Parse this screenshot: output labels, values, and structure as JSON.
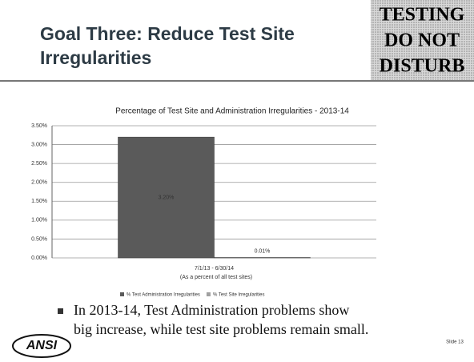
{
  "slide": {
    "title": "Goal Three: Reduce Test Site Irregularities",
    "stamp": [
      "TESTING",
      "DO NOT",
      "DISTURB"
    ],
    "bullet": [
      "In 2013-14, Test Administration problems show",
      "big increase, while test site problems remain small."
    ],
    "logo": "ANSI",
    "slide_number": "Slide 13"
  },
  "chart_data": {
    "type": "bar",
    "title": "Percentage of Test Site and Administration Irregularities - 2013-14",
    "categories": [
      "7/1/13 - 6/30/14"
    ],
    "x_label": "(As a percent of all test sites)",
    "series": [
      {
        "name": "% Test Administration Irregularities",
        "color": "#5a5a5a",
        "values": [
          3.2
        ],
        "value_labels": [
          "3.20%"
        ]
      },
      {
        "name": "% Test Site Irregularities",
        "color": "#a0a0a0",
        "values": [
          0.01
        ],
        "value_labels": [
          "0.01%"
        ]
      }
    ],
    "ylim": [
      0,
      3.5
    ],
    "yticks": [
      {
        "value": 0,
        "label": "0.00%"
      },
      {
        "value": 0.5,
        "label": "0.50%"
      },
      {
        "value": 1,
        "label": "1.00%"
      },
      {
        "value": 1.5,
        "label": "1.50%"
      },
      {
        "value": 2,
        "label": "2.00%"
      },
      {
        "value": 2.5,
        "label": "2.50%"
      },
      {
        "value": 3,
        "label": "3.00%"
      },
      {
        "value": 3.5,
        "label": "3.50%"
      }
    ],
    "grid": true,
    "legend": "bottom"
  }
}
